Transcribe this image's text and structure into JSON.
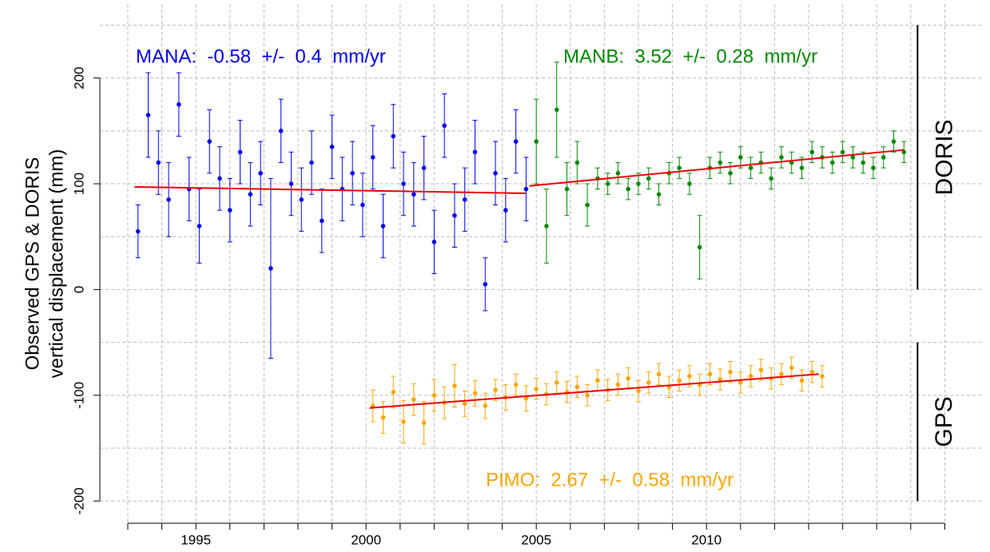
{
  "chart_data": {
    "type": "scatter",
    "ylabel": [
      "Observed GPS & DORIS",
      "vertical displacement (mm)"
    ],
    "xlim": [
      1992.18,
      2018.07
    ],
    "ylim": [
      -221,
      270
    ],
    "xticks": [
      1995,
      2000,
      2005,
      2010
    ],
    "xminor_ticks": [
      1993,
      1994,
      1995,
      1996,
      1997,
      1998,
      1999,
      2000,
      2001,
      2002,
      2003,
      2004,
      2005,
      2006,
      2007,
      2008,
      2009,
      2010,
      2011,
      2012,
      2013,
      2014,
      2015,
      2016,
      2017
    ],
    "yticks": [
      -200,
      -100,
      0,
      100,
      200
    ],
    "ygrid": [
      -200,
      -150,
      -100,
      -50,
      0,
      50,
      100,
      150,
      200,
      250
    ],
    "grid": true,
    "trend_color": "#ee0000",
    "groups": [
      {
        "label": "DORIS",
        "range": [
          0,
          250
        ]
      },
      {
        "label": "GPS",
        "range": [
          -200,
          -50
        ]
      }
    ],
    "series": [
      {
        "label": "MANA:  -0.58  +/-  0.4  mm/yr",
        "color": "#0000ee",
        "x": [
          1993.3,
          1993.6,
          1993.9,
          1994.2,
          1994.5,
          1994.8,
          1995.1,
          1995.4,
          1995.7,
          1996.0,
          1996.3,
          1996.6,
          1996.9,
          1997.2,
          1997.5,
          1997.8,
          1998.1,
          1998.4,
          1998.7,
          1999.0,
          1999.3,
          1999.6,
          1999.9,
          2000.2,
          2000.5,
          2000.8,
          2001.1,
          2001.4,
          2001.7,
          2002.0,
          2002.3,
          2002.6,
          2002.9,
          2003.2,
          2003.5,
          2003.8,
          2004.1,
          2004.4,
          2004.7
        ],
        "values": [
          55,
          165,
          120,
          85,
          175,
          95,
          60,
          140,
          105,
          75,
          130,
          90,
          110,
          20,
          150,
          100,
          85,
          120,
          65,
          135,
          95,
          110,
          80,
          125,
          60,
          145,
          100,
          90,
          115,
          45,
          155,
          70,
          85,
          130,
          5,
          110,
          75,
          140,
          95
        ],
        "errors": [
          25,
          40,
          30,
          35,
          30,
          30,
          35,
          30,
          30,
          30,
          30,
          30,
          30,
          85,
          30,
          30,
          30,
          30,
          30,
          30,
          30,
          30,
          30,
          30,
          30,
          30,
          30,
          30,
          30,
          30,
          30,
          30,
          30,
          30,
          25,
          30,
          30,
          30,
          30
        ],
        "trend": {
          "x": [
            1993.2,
            2004.7
          ],
          "values": [
            97,
            91
          ]
        }
      },
      {
        "label": "MANB:  3.52  +/-  0.28  mm/yr",
        "color": "#008800",
        "x": [
          2005.0,
          2005.3,
          2005.6,
          2005.9,
          2006.2,
          2006.5,
          2006.8,
          2007.1,
          2007.4,
          2007.7,
          2008.0,
          2008.3,
          2008.6,
          2008.9,
          2009.2,
          2009.5,
          2009.8,
          2010.1,
          2010.4,
          2010.7,
          2011.0,
          2011.3,
          2011.6,
          2011.9,
          2012.2,
          2012.5,
          2012.8,
          2013.1,
          2013.4,
          2013.7,
          2014.0,
          2014.3,
          2014.6,
          2014.9,
          2015.2,
          2015.5,
          2015.8
        ],
        "values": [
          140,
          60,
          170,
          95,
          120,
          80,
          105,
          100,
          110,
          95,
          100,
          105,
          90,
          110,
          115,
          100,
          40,
          115,
          120,
          110,
          125,
          115,
          120,
          105,
          125,
          120,
          115,
          130,
          125,
          120,
          130,
          125,
          120,
          115,
          125,
          140,
          130
        ],
        "errors": [
          40,
          35,
          45,
          25,
          20,
          20,
          10,
          10,
          10,
          10,
          10,
          10,
          10,
          10,
          10,
          10,
          30,
          10,
          10,
          10,
          10,
          10,
          10,
          10,
          10,
          10,
          10,
          10,
          10,
          10,
          10,
          10,
          10,
          10,
          10,
          10,
          10
        ],
        "trend": {
          "x": [
            2004.8,
            2015.8
          ],
          "values": [
            98,
            132
          ]
        }
      },
      {
        "label": "PIMO:  2.67  +/-  0.58  mm/yr",
        "color": "#ffa500",
        "x": [
          2000.2,
          2000.5,
          2000.8,
          2001.1,
          2001.4,
          2001.7,
          2002.0,
          2002.3,
          2002.6,
          2002.9,
          2003.2,
          2003.5,
          2003.8,
          2004.1,
          2004.4,
          2004.7,
          2005.0,
          2005.3,
          2005.6,
          2005.9,
          2006.2,
          2006.5,
          2006.8,
          2007.1,
          2007.4,
          2007.7,
          2008.0,
          2008.3,
          2008.6,
          2008.9,
          2009.2,
          2009.5,
          2009.8,
          2010.1,
          2010.4,
          2010.7,
          2011.0,
          2011.3,
          2011.6,
          2011.9,
          2012.2,
          2012.5,
          2012.8,
          2013.1,
          2013.4
        ],
        "values": [
          -110,
          -121,
          -97,
          -125,
          -104,
          -126,
          -100,
          -107,
          -91,
          -108,
          -98,
          -110,
          -95,
          -102,
          -90,
          -103,
          -94,
          -99,
          -88,
          -97,
          -92,
          -100,
          -86,
          -95,
          -90,
          -84,
          -96,
          -88,
          -80,
          -92,
          -86,
          -82,
          -90,
          -80,
          -85,
          -78,
          -88,
          -82,
          -76,
          -84,
          -80,
          -74,
          -86,
          -78,
          -82
        ],
        "errors": [
          15,
          15,
          15,
          20,
          15,
          20,
          15,
          15,
          20,
          12,
          12,
          12,
          10,
          12,
          10,
          12,
          10,
          10,
          10,
          10,
          10,
          10,
          10,
          10,
          10,
          10,
          10,
          10,
          10,
          10,
          10,
          10,
          10,
          10,
          10,
          10,
          10,
          10,
          10,
          10,
          10,
          10,
          10,
          10,
          10
        ],
        "trend": {
          "x": [
            2000.1,
            2013.3
          ],
          "values": [
            -112,
            -80
          ]
        }
      }
    ]
  }
}
